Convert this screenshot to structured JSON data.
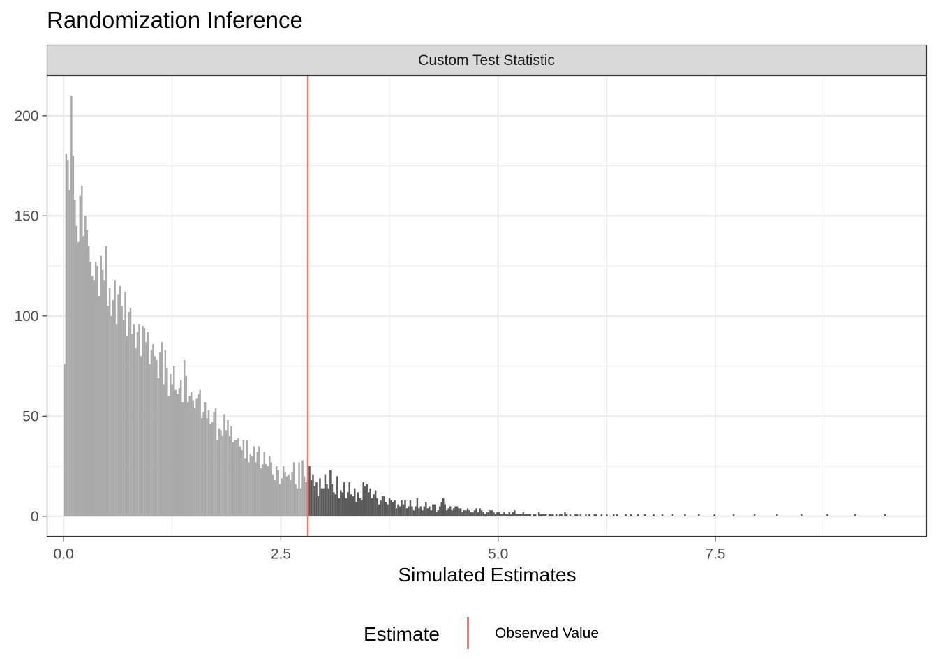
{
  "title": "Randomization Inference",
  "facet_label": "Custom Test Statistic",
  "legend": {
    "title": "Estimate",
    "label": "Observed Value",
    "color": "#F8766D"
  },
  "colors": {
    "light_bars": "#A9A9A9",
    "dark_bars": "#595959",
    "strip": "#D9D9D9",
    "grid": "#EBEBEB",
    "panel_border": "#333333"
  },
  "chart_data": {
    "type": "bar",
    "title": "Randomization Inference",
    "facet": "Custom Test Statistic",
    "xlabel": "Simulated Estimates",
    "ylabel": "",
    "xlim": [
      -0.19,
      9.93
    ],
    "ylim": [
      -10,
      220
    ],
    "x_ticks": [
      0,
      2.5,
      5,
      7.5
    ],
    "x_tick_labels": [
      "0.0",
      "2.5",
      "5.0",
      "7.5"
    ],
    "y_ticks": [
      0,
      50,
      100,
      150,
      200
    ],
    "y_tick_labels": [
      "0",
      "50",
      "100",
      "150",
      "200"
    ],
    "grid": true,
    "observed_value": 2.81,
    "bin_width": 0.02,
    "bins_start": 0,
    "counts": [
      76,
      181,
      178,
      163,
      210,
      180,
      158,
      145,
      137,
      160,
      165,
      140,
      150,
      143,
      135,
      127,
      120,
      118,
      127,
      125,
      110,
      130,
      123,
      118,
      135,
      105,
      114,
      100,
      108,
      118,
      96,
      111,
      115,
      105,
      98,
      112,
      90,
      102,
      104,
      91,
      96,
      84,
      92,
      96,
      80,
      95,
      94,
      87,
      92,
      76,
      83,
      86,
      80,
      78,
      69,
      82,
      87,
      66,
      83,
      74,
      60,
      71,
      66,
      75,
      63,
      61,
      64,
      68,
      57,
      78,
      70,
      57,
      60,
      62,
      58,
      54,
      59,
      61,
      63,
      49,
      52,
      57,
      49,
      53,
      46,
      47,
      52,
      54,
      38,
      44,
      43,
      40,
      51,
      43,
      48,
      40,
      45,
      37,
      38,
      38,
      39,
      35,
      33,
      38,
      29,
      38,
      27,
      31,
      30,
      35,
      27,
      32,
      35,
      24,
      26,
      32,
      26,
      25,
      30,
      27,
      21,
      18,
      25,
      23,
      16,
      19,
      25,
      22,
      20,
      21,
      18,
      22,
      27,
      16,
      14,
      27,
      14,
      28,
      20,
      17,
      18,
      25,
      18,
      21,
      15,
      17,
      10,
      19,
      14,
      14,
      21,
      16,
      14,
      23,
      16,
      12,
      11,
      20,
      9,
      13,
      12,
      17,
      9,
      12,
      17,
      11,
      10,
      14,
      7,
      12,
      9,
      8,
      17,
      15,
      16,
      12,
      14,
      9,
      11,
      13,
      9,
      6,
      8,
      10,
      10,
      7,
      6,
      9,
      8,
      7,
      8,
      4,
      6,
      5,
      8,
      6,
      8,
      4,
      5,
      8,
      5,
      3,
      5,
      9,
      4,
      5,
      3,
      5,
      7,
      4,
      5,
      3,
      6,
      6,
      2,
      3,
      5,
      7,
      9,
      6,
      3,
      4,
      5,
      3,
      4,
      5,
      5,
      4,
      4,
      2,
      3,
      3,
      4,
      3,
      2,
      2,
      3,
      4,
      2,
      4,
      3,
      2,
      1,
      2,
      2,
      3,
      3,
      2,
      1,
      2,
      2,
      1,
      1,
      2,
      1,
      1,
      2,
      1,
      2,
      3,
      1,
      1,
      1,
      1,
      2,
      1,
      1,
      1,
      1,
      0,
      1,
      1,
      0,
      2,
      1,
      1,
      1,
      1,
      0,
      1,
      1,
      1,
      0,
      1,
      0,
      1,
      1,
      0,
      2,
      1,
      0,
      1,
      0,
      0,
      1,
      1,
      0,
      1,
      0,
      0,
      1,
      0,
      1,
      0,
      0,
      1,
      1,
      0,
      0,
      1,
      0,
      0,
      1,
      0,
      0,
      0,
      1,
      0,
      1,
      0,
      0,
      0,
      0,
      1,
      0,
      0,
      1,
      0,
      0,
      0,
      1,
      0,
      0,
      0,
      1,
      0,
      0,
      0,
      0,
      1,
      0,
      0,
      0,
      0,
      1,
      0,
      0,
      0,
      0,
      0,
      1,
      0,
      0,
      0,
      0,
      0,
      0,
      1,
      0,
      0,
      0,
      0,
      0,
      0,
      0,
      1,
      0,
      0,
      0,
      0,
      0,
      0,
      0,
      0,
      1,
      0,
      0,
      0,
      0,
      0,
      0,
      0,
      0,
      0,
      0,
      1,
      0,
      0,
      0,
      0,
      0,
      0,
      0,
      0,
      0,
      0,
      0,
      1,
      0,
      0,
      0,
      0,
      0,
      0,
      0,
      0,
      0,
      0,
      0,
      0,
      1,
      0,
      0,
      0,
      0,
      0,
      0,
      0,
      0,
      0,
      0,
      0,
      0,
      0,
      1,
      0,
      0,
      0,
      0,
      0,
      0,
      0,
      0,
      0,
      0,
      0,
      0,
      0,
      0,
      1,
      0,
      0,
      0,
      0,
      0,
      0,
      0,
      0,
      0,
      0,
      0,
      0,
      0,
      0,
      0,
      1,
      0,
      0,
      0,
      0,
      0,
      0,
      0,
      0,
      0,
      0,
      0,
      0,
      0,
      0,
      0,
      0,
      1
    ]
  }
}
